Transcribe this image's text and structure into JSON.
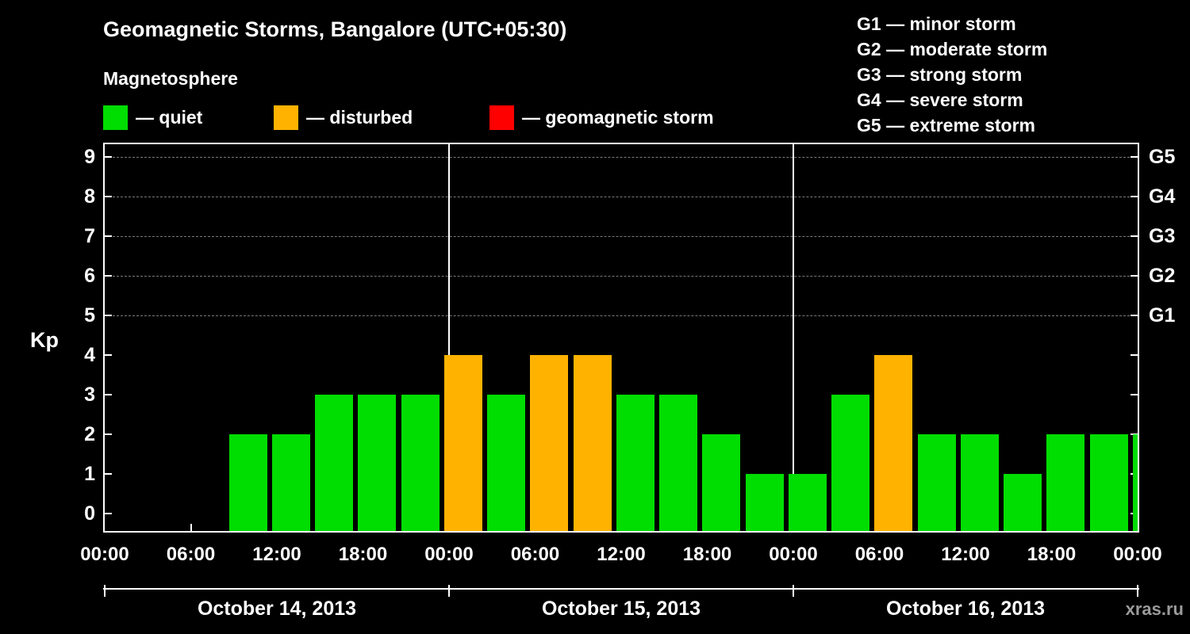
{
  "header": {
    "title": "Geomagnetic Storms, Bangalore (UTC+05:30)",
    "subtitle": "Magnetosphere"
  },
  "legend": {
    "items": [
      {
        "status": "quiet",
        "label": "— quiet",
        "color": "#00DD00"
      },
      {
        "status": "disturbed",
        "label": "— disturbed",
        "color": "#FFB300"
      },
      {
        "status": "storm",
        "label": "— geomagnetic storm",
        "color": "#FF0000"
      }
    ]
  },
  "storm_scale_legend": {
    "items": [
      "G1 — minor storm",
      "G2 — moderate storm",
      "G3 — strong storm",
      "G4 — severe storm",
      "G5 — extreme storm"
    ]
  },
  "watermark": "xras.ru",
  "chart_data": {
    "type": "bar",
    "title": "Geomagnetic Storms, Bangalore (UTC+05:30)",
    "ylabel": "Kp",
    "ylim": [
      0,
      9
    ],
    "yticks": [
      0,
      1,
      2,
      3,
      4,
      5,
      6,
      7,
      8,
      9
    ],
    "grid_levels": [
      5,
      6,
      7,
      8,
      9
    ],
    "grid": "dashed horizontal gridlines at Kp 5 through 9",
    "legend_position": "top",
    "right_axis": [
      {
        "kp": 5,
        "label": "G1"
      },
      {
        "kp": 6,
        "label": "G2"
      },
      {
        "kp": 7,
        "label": "G3"
      },
      {
        "kp": 8,
        "label": "G4"
      },
      {
        "kp": 9,
        "label": "G5"
      }
    ],
    "x_ticks": [
      {
        "hour": 0,
        "label": "00:00"
      },
      {
        "hour": 6,
        "label": "06:00"
      },
      {
        "hour": 12,
        "label": "12:00"
      },
      {
        "hour": 18,
        "label": "18:00"
      },
      {
        "hour": 24,
        "label": "00:00"
      },
      {
        "hour": 30,
        "label": "06:00"
      },
      {
        "hour": 36,
        "label": "12:00"
      },
      {
        "hour": 42,
        "label": "18:00"
      },
      {
        "hour": 48,
        "label": "00:00"
      },
      {
        "hour": 54,
        "label": "06:00"
      },
      {
        "hour": 60,
        "label": "12:00"
      },
      {
        "hour": 66,
        "label": "18:00"
      },
      {
        "hour": 72,
        "label": "00:00"
      }
    ],
    "day_boundaries_hours": [
      24,
      48
    ],
    "days": [
      {
        "label": "October 14, 2013",
        "start_hour": 0,
        "end_hour": 24
      },
      {
        "label": "October 15, 2013",
        "start_hour": 24,
        "end_hour": 48
      },
      {
        "label": "October 16, 2013",
        "start_hour": 48,
        "end_hour": 72
      }
    ],
    "bar_duration_hours": 3,
    "bars": [
      {
        "start_hour": 8.5,
        "kp": 2,
        "status": "quiet"
      },
      {
        "start_hour": 11.5,
        "kp": 2,
        "status": "quiet"
      },
      {
        "start_hour": 14.5,
        "kp": 3,
        "status": "quiet"
      },
      {
        "start_hour": 17.5,
        "kp": 3,
        "status": "quiet"
      },
      {
        "start_hour": 20.5,
        "kp": 3,
        "status": "quiet"
      },
      {
        "start_hour": 23.5,
        "kp": 4,
        "status": "disturbed"
      },
      {
        "start_hour": 26.5,
        "kp": 3,
        "status": "quiet"
      },
      {
        "start_hour": 29.5,
        "kp": 4,
        "status": "disturbed"
      },
      {
        "start_hour": 32.5,
        "kp": 4,
        "status": "disturbed"
      },
      {
        "start_hour": 35.5,
        "kp": 3,
        "status": "quiet"
      },
      {
        "start_hour": 38.5,
        "kp": 3,
        "status": "quiet"
      },
      {
        "start_hour": 41.5,
        "kp": 2,
        "status": "quiet"
      },
      {
        "start_hour": 44.5,
        "kp": 1,
        "status": "quiet"
      },
      {
        "start_hour": 47.5,
        "kp": 1,
        "status": "quiet"
      },
      {
        "start_hour": 50.5,
        "kp": 3,
        "status": "quiet"
      },
      {
        "start_hour": 53.5,
        "kp": 4,
        "status": "disturbed"
      },
      {
        "start_hour": 56.5,
        "kp": 2,
        "status": "quiet"
      },
      {
        "start_hour": 59.5,
        "kp": 2,
        "status": "quiet"
      },
      {
        "start_hour": 62.5,
        "kp": 1,
        "status": "quiet"
      },
      {
        "start_hour": 65.5,
        "kp": 2,
        "status": "quiet"
      },
      {
        "start_hour": 68.5,
        "kp": 2,
        "status": "quiet"
      },
      {
        "start_hour": 71.5,
        "kp": 2,
        "status": "quiet"
      }
    ]
  }
}
